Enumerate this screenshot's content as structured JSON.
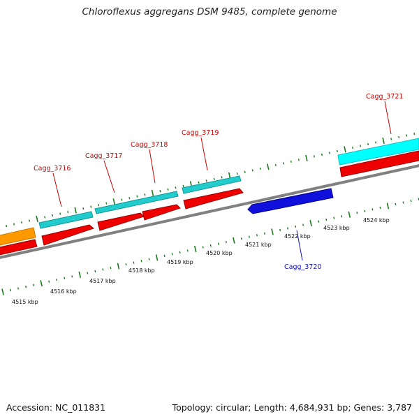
{
  "title": "Chloroflexus aggregans DSM 9485, complete genome",
  "footer": {
    "accession": "Accession: NC_011831",
    "topology": "Topology: circular; Length: 4,684,931 bp; Genes: 3,787"
  },
  "colors": {
    "backbone": "#808080",
    "tick": "#1a7a1a",
    "cds_red": "#ee0000",
    "cds_cyan": "#22cccc",
    "cds_blue": "#1010dd",
    "cds_orange": "#ff9900",
    "label_red": "#cc0000",
    "label_blue": "#1111bb"
  },
  "scale_labels": [
    "4515 kbp",
    "4516 kbp",
    "4517 kbp",
    "4518 kbp",
    "4519 kbp",
    "4520 kbp",
    "4521 kbp",
    "4522 kbp",
    "4523 kbp",
    "4524 kbp"
  ],
  "gene_labels": [
    {
      "text": "Cagg_3716",
      "color": "red"
    },
    {
      "text": "Cagg_3717",
      "color": "red"
    },
    {
      "text": "Cagg_3718",
      "color": "red"
    },
    {
      "text": "Cagg_3719",
      "color": "red"
    },
    {
      "text": "Cagg_3721",
      "color": "red"
    },
    {
      "text": "Cagg_3720",
      "color": "blue"
    }
  ]
}
